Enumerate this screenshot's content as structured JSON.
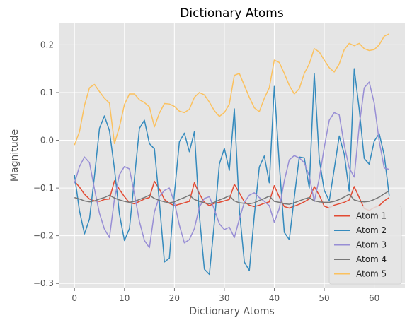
{
  "chart_data": {
    "type": "line",
    "title": "Dictionary Atoms",
    "xlabel": "Dictionary Atoms",
    "ylabel": "Magnitude",
    "xlim": [
      -3.15,
      66.15
    ],
    "ylim": [
      -0.31,
      0.245
    ],
    "xticks": [
      0,
      10,
      20,
      30,
      40,
      50,
      60
    ],
    "xtick_labels": [
      "0",
      "10",
      "20",
      "30",
      "40",
      "50",
      "60"
    ],
    "yticks": [
      -0.3,
      -0.2,
      -0.1,
      0.0,
      0.1,
      0.2
    ],
    "ytick_labels": [
      "−0.3",
      "−0.2",
      "−0.1",
      "0.0",
      "0.1",
      "0.2"
    ],
    "grid": true,
    "legend_position": "lower-right",
    "x": [
      0,
      1,
      2,
      3,
      4,
      5,
      6,
      7,
      8,
      9,
      10,
      11,
      12,
      13,
      14,
      15,
      16,
      17,
      18,
      19,
      20,
      21,
      22,
      23,
      24,
      25,
      26,
      27,
      28,
      29,
      30,
      31,
      32,
      33,
      34,
      35,
      36,
      37,
      38,
      39,
      40,
      41,
      42,
      43,
      44,
      45,
      46,
      47,
      48,
      49,
      50,
      51,
      52,
      53,
      54,
      55,
      56,
      57,
      58,
      59,
      60,
      61,
      62,
      63
    ],
    "series": [
      {
        "name": "Atom 1",
        "color": "#E24A33",
        "values": [
          -0.086,
          -0.098,
          -0.113,
          -0.123,
          -0.127,
          -0.128,
          -0.124,
          -0.123,
          -0.085,
          -0.103,
          -0.118,
          -0.131,
          -0.133,
          -0.128,
          -0.123,
          -0.12,
          -0.086,
          -0.102,
          -0.124,
          -0.132,
          -0.137,
          -0.134,
          -0.131,
          -0.128,
          -0.089,
          -0.112,
          -0.13,
          -0.137,
          -0.132,
          -0.13,
          -0.127,
          -0.124,
          -0.092,
          -0.11,
          -0.129,
          -0.136,
          -0.139,
          -0.136,
          -0.132,
          -0.129,
          -0.095,
          -0.119,
          -0.139,
          -0.142,
          -0.138,
          -0.134,
          -0.129,
          -0.123,
          -0.097,
          -0.115,
          -0.138,
          -0.142,
          -0.136,
          -0.133,
          -0.13,
          -0.125,
          -0.097,
          -0.12,
          -0.143,
          -0.147,
          -0.141,
          -0.137,
          -0.127,
          -0.12
        ]
      },
      {
        "name": "Atom 2",
        "color": "#348ABD",
        "values": [
          -0.073,
          -0.148,
          -0.196,
          -0.165,
          -0.075,
          0.025,
          0.051,
          0.02,
          -0.06,
          -0.155,
          -0.21,
          -0.185,
          -0.08,
          0.025,
          0.042,
          -0.007,
          -0.018,
          -0.13,
          -0.255,
          -0.247,
          -0.112,
          -0.003,
          0.015,
          -0.024,
          0.018,
          -0.157,
          -0.27,
          -0.281,
          -0.172,
          -0.05,
          -0.017,
          -0.063,
          0.066,
          -0.145,
          -0.255,
          -0.273,
          -0.157,
          -0.056,
          -0.033,
          -0.089,
          0.113,
          -0.05,
          -0.193,
          -0.208,
          -0.12,
          -0.035,
          -0.037,
          -0.1,
          0.14,
          -0.04,
          -0.105,
          -0.127,
          -0.06,
          0.009,
          -0.029,
          -0.107,
          0.15,
          0.065,
          -0.038,
          -0.05,
          -0.002,
          0.014,
          -0.031,
          -0.116
        ]
      },
      {
        "name": "Atom 3",
        "color": "#988ED5",
        "values": [
          -0.09,
          -0.055,
          -0.035,
          -0.047,
          -0.102,
          -0.153,
          -0.186,
          -0.204,
          -0.123,
          -0.072,
          -0.055,
          -0.06,
          -0.112,
          -0.17,
          -0.21,
          -0.225,
          -0.15,
          -0.118,
          -0.105,
          -0.1,
          -0.13,
          -0.178,
          -0.215,
          -0.208,
          -0.185,
          -0.14,
          -0.122,
          -0.118,
          -0.145,
          -0.175,
          -0.187,
          -0.182,
          -0.204,
          -0.165,
          -0.13,
          -0.115,
          -0.11,
          -0.12,
          -0.128,
          -0.137,
          -0.172,
          -0.143,
          -0.085,
          -0.041,
          -0.032,
          -0.037,
          -0.047,
          -0.075,
          -0.128,
          -0.08,
          -0.015,
          0.042,
          0.058,
          0.053,
          -0.01,
          -0.058,
          -0.077,
          0.03,
          0.11,
          0.122,
          0.078,
          -0.002,
          -0.058,
          -0.061
        ]
      },
      {
        "name": "Atom 4",
        "color": "#777777",
        "values": [
          -0.12,
          -0.123,
          -0.127,
          -0.129,
          -0.127,
          -0.123,
          -0.12,
          -0.115,
          -0.121,
          -0.125,
          -0.128,
          -0.13,
          -0.128,
          -0.124,
          -0.12,
          -0.115,
          -0.122,
          -0.126,
          -0.129,
          -0.131,
          -0.129,
          -0.124,
          -0.12,
          -0.115,
          -0.124,
          -0.128,
          -0.131,
          -0.133,
          -0.13,
          -0.125,
          -0.121,
          -0.116,
          -0.127,
          -0.131,
          -0.132,
          -0.133,
          -0.131,
          -0.126,
          -0.122,
          -0.117,
          -0.128,
          -0.13,
          -0.133,
          -0.134,
          -0.131,
          -0.127,
          -0.123,
          -0.12,
          -0.127,
          -0.129,
          -0.13,
          -0.13,
          -0.128,
          -0.124,
          -0.119,
          -0.113,
          -0.125,
          -0.128,
          -0.129,
          -0.128,
          -0.124,
          -0.119,
          -0.112,
          -0.106
        ]
      },
      {
        "name": "Atom 5",
        "color": "#FBC15E",
        "values": [
          -0.01,
          0.018,
          0.073,
          0.11,
          0.117,
          0.102,
          0.088,
          0.078,
          -0.007,
          0.028,
          0.075,
          0.097,
          0.097,
          0.085,
          0.079,
          0.07,
          0.028,
          0.057,
          0.077,
          0.076,
          0.071,
          0.061,
          0.058,
          0.065,
          0.09,
          0.1,
          0.095,
          0.08,
          0.062,
          0.05,
          0.058,
          0.076,
          0.136,
          0.14,
          0.115,
          0.09,
          0.068,
          0.06,
          0.088,
          0.11,
          0.168,
          0.163,
          0.14,
          0.115,
          0.097,
          0.108,
          0.14,
          0.16,
          0.192,
          0.185,
          0.168,
          0.152,
          0.143,
          0.16,
          0.19,
          0.203,
          0.198,
          0.203,
          0.192,
          0.188,
          0.19,
          0.2,
          0.218,
          0.223
        ]
      }
    ]
  }
}
